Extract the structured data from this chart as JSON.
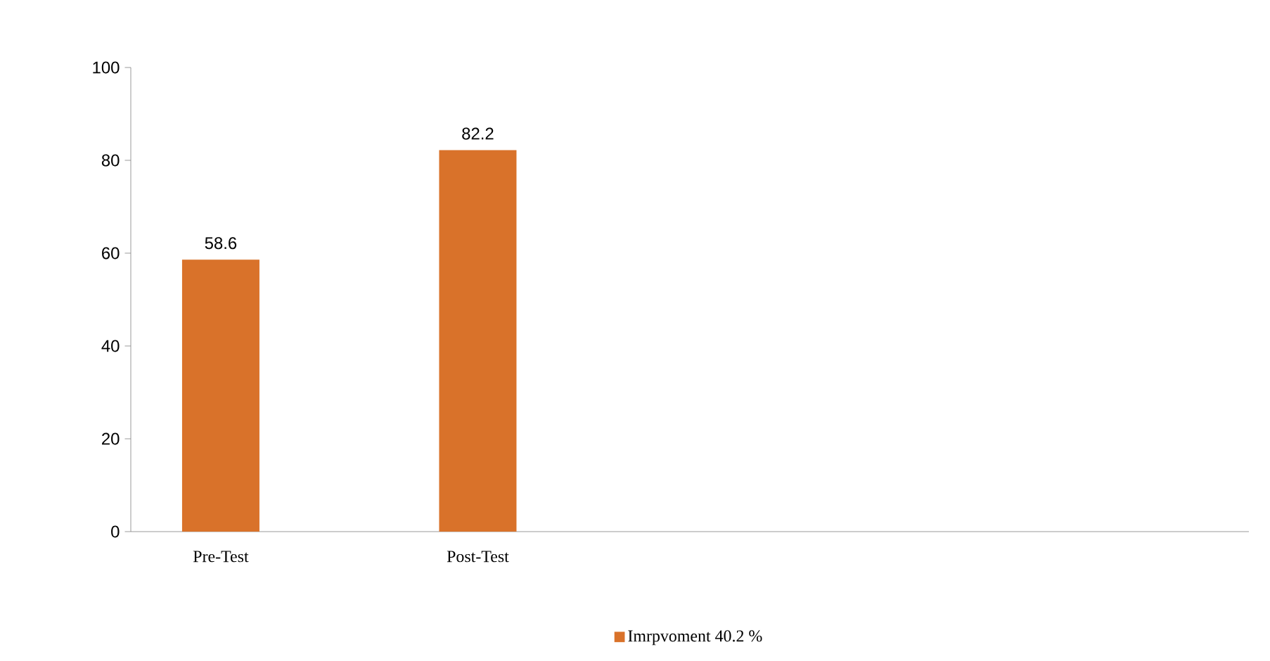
{
  "chart_data": {
    "type": "bar",
    "categories": [
      "Pre-Test",
      "Post-Test",
      null,
      null
    ],
    "series": [
      {
        "name": "Imrpvoment 40.2 %",
        "color": "#d9722a",
        "values": [
          58.6,
          82.2,
          null,
          null
        ]
      }
    ],
    "ylim": [
      0,
      100
    ],
    "yticks": [
      0,
      20,
      40,
      60,
      80,
      100
    ],
    "data_labels": true,
    "legend": "bottom",
    "grid": false
  }
}
